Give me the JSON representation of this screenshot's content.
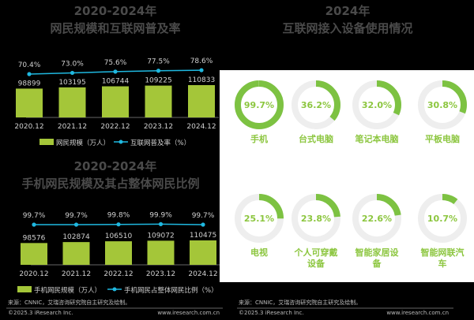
{
  "colors": {
    "bar": "#a4c639",
    "line": "#1fb8e0",
    "donut": "#7dc242",
    "track": "#eeeeee"
  },
  "chart_data": [
    {
      "type": "bar",
      "title": "2020-2024年",
      "subtitle": "网民规模和互联网普及率",
      "categories": [
        "2020.12",
        "2021.12",
        "2022.12",
        "2023.12",
        "2024.12"
      ],
      "series": [
        {
          "name": "网民规模（万人）",
          "type": "bar",
          "values": [
            98899,
            103195,
            106744,
            109225,
            110833
          ],
          "labels": [
            "98899",
            "103195",
            "106744",
            "109225",
            "110833"
          ]
        },
        {
          "name": "互联网普及率（%）",
          "type": "line",
          "values": [
            70.4,
            73.0,
            75.6,
            77.5,
            78.6
          ],
          "labels": [
            "70.4%",
            "73.0%",
            "75.6%",
            "77.5%",
            "78.6%"
          ]
        }
      ]
    },
    {
      "type": "bar",
      "title": "2020-2024年",
      "subtitle": "手机网民规模及其占整体网民比例",
      "categories": [
        "2020.12",
        "2021.12",
        "2022.12",
        "2023.12",
        "2024.12"
      ],
      "series": [
        {
          "name": "手机网民规模（万人）",
          "type": "bar",
          "values": [
            98576,
            102874,
            106510,
            109072,
            110475
          ],
          "labels": [
            "98576",
            "102874",
            "106510",
            "109072",
            "110475"
          ]
        },
        {
          "name": "手机网民占整体网民比例（%）",
          "type": "line",
          "values": [
            99.7,
            99.7,
            99.8,
            99.9,
            99.7
          ],
          "labels": [
            "99.7%",
            "99.7%",
            "99.8%",
            "99.9%",
            "99.7%"
          ]
        }
      ]
    },
    {
      "type": "pie",
      "title": "2024年",
      "subtitle": "互联网接入设备使用情况",
      "categories": [
        "手机",
        "台式电脑",
        "笔记本电脑",
        "平板电脑",
        "电视",
        "个人可穿戴设备",
        "智能家居设备",
        "智能网联汽车"
      ],
      "values": [
        99.7,
        36.2,
        32.0,
        30.8,
        25.1,
        23.8,
        22.6,
        10.7
      ],
      "labels": [
        "99.7%",
        "36.2%",
        "32.0%",
        "30.8%",
        "25.1%",
        "23.8%",
        "22.6%",
        "10.7%"
      ]
    }
  ],
  "footer": {
    "source": "来源：CNNIC，艾瑞咨询研究院自主研究及绘制。",
    "copyright": "©2025.3 iResearch Inc.",
    "url": "www.iresearch.com.cn"
  }
}
